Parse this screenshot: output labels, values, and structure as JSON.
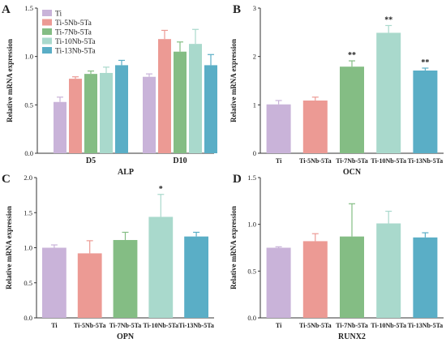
{
  "chart_data": [
    {
      "panel": "A",
      "type": "bar",
      "categories": [
        "D5",
        "D10"
      ],
      "xlabel": "ALP",
      "ylabel": "Relative mRNA expression",
      "ylim": [
        0,
        1.5
      ],
      "yticks": [
        "0.0",
        "0.5",
        "1.0",
        "1.5"
      ],
      "legend": "top-left",
      "series": [
        {
          "name": "Ti",
          "color": "#c9b3d9",
          "values": [
            0.53,
            0.79
          ],
          "errors": [
            0.05,
            0.03
          ]
        },
        {
          "name": "Ti-5Nb-5Ta",
          "color": "#ec9a94",
          "values": [
            0.77,
            1.18
          ],
          "errors": [
            0.02,
            0.09
          ]
        },
        {
          "name": "Ti-7Nb-5Ta",
          "color": "#84bd84",
          "values": [
            0.82,
            1.05
          ],
          "errors": [
            0.03,
            0.1
          ]
        },
        {
          "name": "Ti-10Nb-5Ta",
          "color": "#a9d9cc",
          "values": [
            0.83,
            1.13
          ],
          "errors": [
            0.06,
            0.15
          ]
        },
        {
          "name": "Ti-13Nb-5Ta",
          "color": "#5aaec6",
          "values": [
            0.91,
            0.91
          ],
          "errors": [
            0.05,
            0.11
          ]
        }
      ]
    },
    {
      "panel": "B",
      "type": "bar",
      "categories": [
        "Ti",
        "Ti-5Nb-5Ta",
        "Ti-7Nb-5Ta",
        "Ti-10Nb-5Ta",
        "Ti-13Nb-5Ta"
      ],
      "colors": [
        "#c9b3d9",
        "#ec9a94",
        "#84bd84",
        "#a9d9cc",
        "#5aaec6"
      ],
      "values": [
        1.01,
        1.09,
        1.79,
        2.49,
        1.71
      ],
      "errors": [
        0.08,
        0.07,
        0.12,
        0.15,
        0.05
      ],
      "significance": [
        "",
        "",
        "**",
        "**",
        "**"
      ],
      "xlabel": "OCN",
      "ylabel": "Relative mRNA expression",
      "ylim": [
        0,
        3
      ],
      "yticks": [
        "0",
        "1",
        "2",
        "3"
      ]
    },
    {
      "panel": "C",
      "type": "bar",
      "categories": [
        "Ti",
        "Ti-5Nb-5Ta",
        "Ti-7Nb-5Ta",
        "Ti-10Nb-5Ta",
        "Ti-13Nb-5Ta"
      ],
      "colors": [
        "#c9b3d9",
        "#ec9a94",
        "#84bd84",
        "#a9d9cc",
        "#5aaec6"
      ],
      "values": [
        1.0,
        0.92,
        1.11,
        1.44,
        1.16
      ],
      "errors": [
        0.04,
        0.18,
        0.11,
        0.32,
        0.06
      ],
      "significance": [
        "",
        "",
        "",
        "*",
        ""
      ],
      "xlabel": "OPN",
      "ylabel": "Relative mRNA expression",
      "ylim": [
        0,
        2.0
      ],
      "yticks": [
        "0.0",
        "0.5",
        "1.0",
        "1.5",
        "2.0"
      ]
    },
    {
      "panel": "D",
      "type": "bar",
      "categories": [
        "Ti",
        "Ti-5Nb-5Ta",
        "Ti-7Nb-5Ta",
        "Ti-10Nb-5Ta",
        "Ti-13Nb-5Ta"
      ],
      "colors": [
        "#c9b3d9",
        "#ec9a94",
        "#84bd84",
        "#a9d9cc",
        "#5aaec6"
      ],
      "values": [
        0.75,
        0.82,
        0.87,
        1.01,
        0.86
      ],
      "errors": [
        0.01,
        0.08,
        0.35,
        0.13,
        0.05
      ],
      "significance": [
        "",
        "",
        "",
        "",
        ""
      ],
      "xlabel": "RUNX2",
      "ylabel": "Relative mRNA expression",
      "ylim": [
        0,
        1.5
      ],
      "yticks": [
        "0.0",
        "0.5",
        "1.0",
        "1.5"
      ]
    }
  ]
}
